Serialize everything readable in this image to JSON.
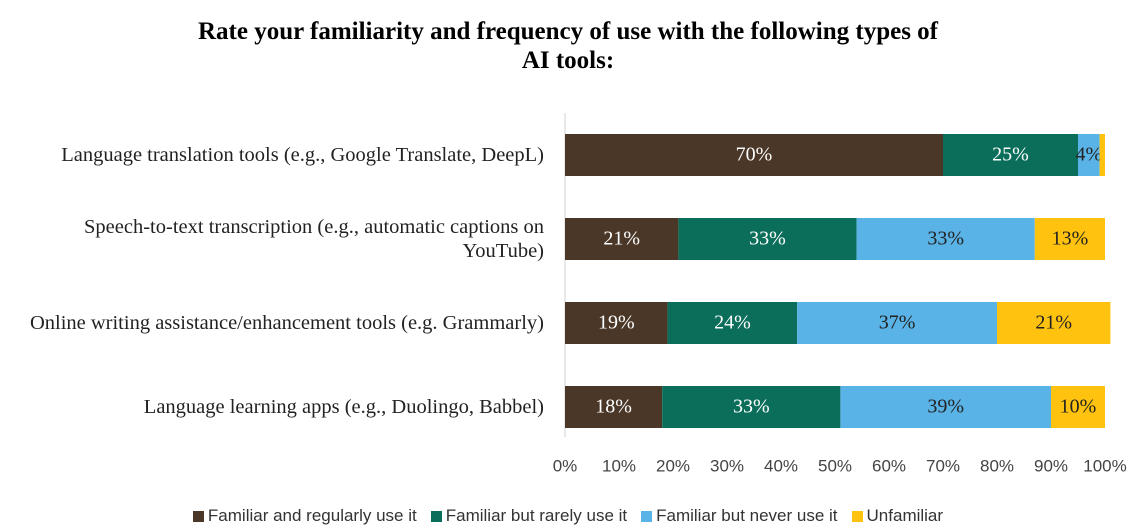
{
  "chart_data": {
    "type": "stacked-barh",
    "title": "Rate your familiarity and frequency of use with the following types of AI tools:",
    "categories": [
      "Language translation tools (e.g., Google Translate, DeepL)",
      "Speech-to-text transcription (e.g., automatic captions on YouTube)",
      "Online writing assistance/enhancement tools (e.g. Grammarly)",
      "Language learning apps (e.g., Duolingo, Babbel)"
    ],
    "series": [
      {
        "name": "Familiar and regularly use it",
        "color": "#4a3728",
        "values": [
          70,
          21,
          19,
          18
        ],
        "value_labels": [
          "70%",
          "21%",
          "19%",
          "18%"
        ]
      },
      {
        "name": "Familiar but rarely use it",
        "color": "#0b6e5a",
        "values": [
          25,
          33,
          24,
          33
        ],
        "value_labels": [
          "25%",
          "33%",
          "24%",
          "33%"
        ]
      },
      {
        "name": "Familiar but never use it",
        "color": "#5ab3e6",
        "values": [
          4,
          33,
          37,
          39
        ],
        "value_labels": [
          "4%",
          "33%",
          "37%",
          "39%"
        ]
      },
      {
        "name": "Unfamiliar",
        "color": "#ffc20e",
        "values": [
          1,
          13,
          21,
          10
        ],
        "value_labels": [
          null,
          "13%",
          "21%",
          "10%"
        ]
      }
    ],
    "xlim": [
      0,
      100
    ],
    "xticks": [
      {
        "value": 0,
        "label": "0%"
      },
      {
        "value": 10,
        "label": "10%"
      },
      {
        "value": 20,
        "label": "20%"
      },
      {
        "value": 30,
        "label": "30%"
      },
      {
        "value": 40,
        "label": "40%"
      },
      {
        "value": 50,
        "label": "50%"
      },
      {
        "value": 60,
        "label": "60%"
      },
      {
        "value": 70,
        "label": "70%"
      },
      {
        "value": 80,
        "label": "80%"
      },
      {
        "value": 90,
        "label": "90%"
      },
      {
        "value": 100,
        "label": "100%"
      }
    ],
    "legend": "bottom"
  }
}
